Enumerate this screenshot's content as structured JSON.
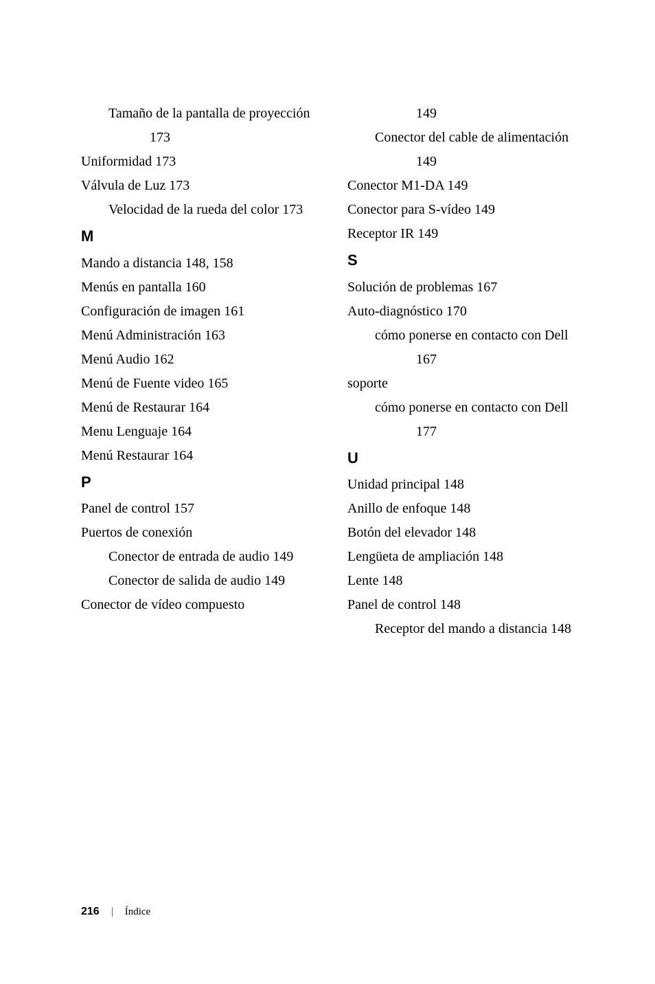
{
  "left": {
    "cont": [
      {
        "text": "Tamaño de la pantalla de proyección 173",
        "cls": "indent2"
      },
      {
        "text": "Uniformidad 173",
        "cls": "indent1"
      },
      {
        "text": "Válvula de Luz 173",
        "cls": "indent1"
      },
      {
        "text": "Velocidad de la rueda del color 173",
        "cls": "indent2"
      }
    ],
    "M": {
      "letter": "M",
      "items": [
        {
          "text": "Mando a distancia 148, 158",
          "cls": "entry"
        },
        {
          "text": "Menús en pantalla 160",
          "cls": "entry"
        },
        {
          "text": "Configuración de imagen 161",
          "cls": "indent1"
        },
        {
          "text": "Menú Administración 163",
          "cls": "indent1"
        },
        {
          "text": "Menú Audio 162",
          "cls": "indent1"
        },
        {
          "text": "Menú de Fuente video 165",
          "cls": "indent1"
        },
        {
          "text": "Menú de Restaurar 164",
          "cls": "indent1"
        },
        {
          "text": "Menu Lenguaje 164",
          "cls": "indent1"
        },
        {
          "text": "Menú Restaurar 164",
          "cls": "indent1"
        }
      ]
    },
    "P": {
      "letter": "P",
      "items": [
        {
          "text": "Panel de control 157",
          "cls": "entry"
        },
        {
          "text": "Puertos de conexión",
          "cls": "entry"
        },
        {
          "text": "Conector de entrada de audio 149",
          "cls": "indent2"
        },
        {
          "text": "Conector de salida de audio 149",
          "cls": "indent2"
        },
        {
          "text": "Conector de vídeo compuesto",
          "cls": "indent1"
        }
      ]
    }
  },
  "right": {
    "cont": [
      {
        "text": "149",
        "cls": "indent3"
      },
      {
        "text": "Conector del cable de alimentación 149",
        "cls": "indent2"
      },
      {
        "text": "Conector M1-DA 149",
        "cls": "indent1"
      },
      {
        "text": "Conector para S-vídeo 149",
        "cls": "indent1"
      },
      {
        "text": "Receptor IR 149",
        "cls": "indent1"
      }
    ],
    "S": {
      "letter": "S",
      "items": [
        {
          "text": "Solución de problemas 167",
          "cls": "entry"
        },
        {
          "text": "Auto-diagnóstico 170",
          "cls": "indent1"
        },
        {
          "text": "cómo ponerse en contacto con Dell 167",
          "cls": "indent2"
        },
        {
          "text": "soporte",
          "cls": "entry"
        },
        {
          "text": "cómo ponerse en contacto con Dell 177",
          "cls": "indent2"
        }
      ]
    },
    "U": {
      "letter": "U",
      "items": [
        {
          "text": "Unidad principal 148",
          "cls": "entry"
        },
        {
          "text": "Anillo de enfoque 148",
          "cls": "indent1"
        },
        {
          "text": "Botón del elevador 148",
          "cls": "indent1"
        },
        {
          "text": "Lengüeta de ampliación 148",
          "cls": "indent1"
        },
        {
          "text": "Lente 148",
          "cls": "indent1"
        },
        {
          "text": "Panel de control 148",
          "cls": "indent1"
        },
        {
          "text": "Receptor del mando a distancia 148",
          "cls": "indent2"
        }
      ]
    }
  },
  "footer": {
    "page": "216",
    "label": "Índice"
  }
}
